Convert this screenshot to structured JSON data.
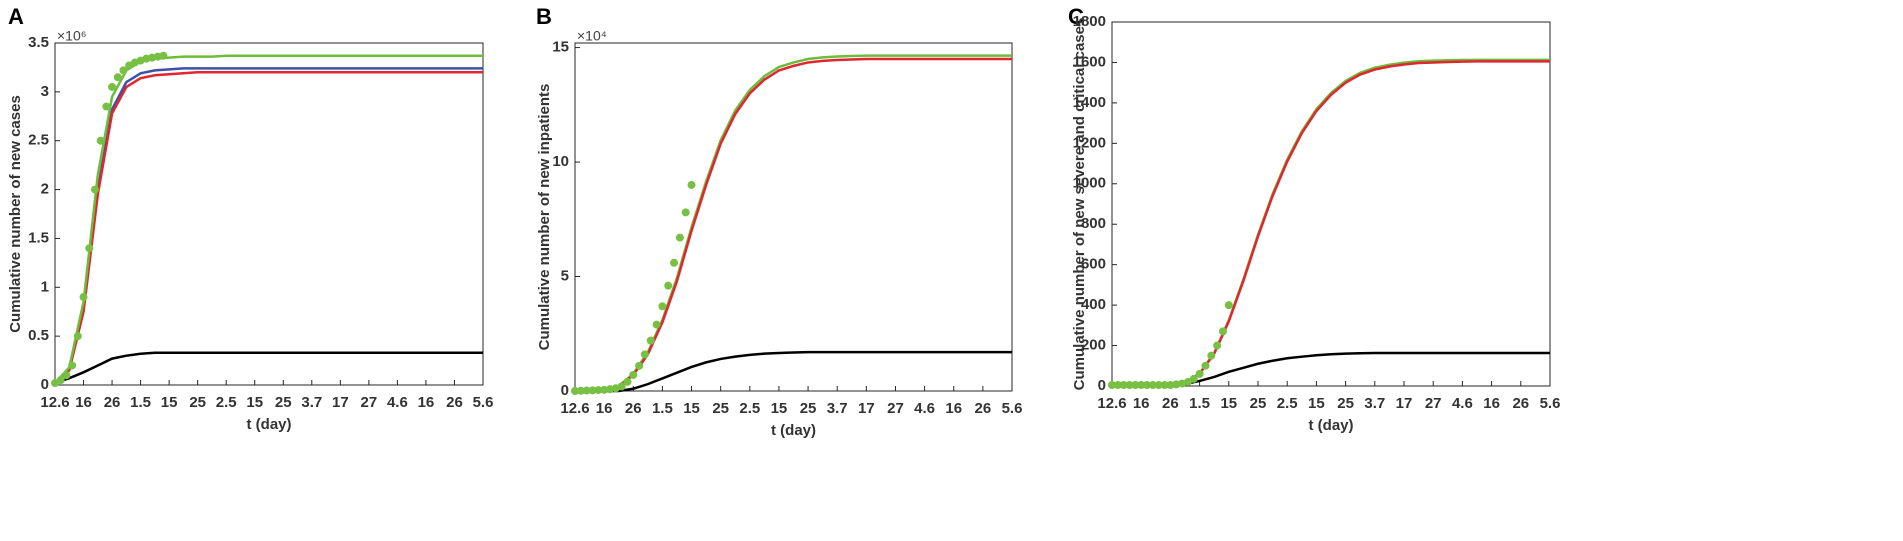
{
  "chart_data": [
    {
      "type": "line",
      "panel_label": "A",
      "ylabel": "Cumulative number of new cases",
      "xlabel": "t (day)",
      "y_multiplier": "×10⁶",
      "xlim": [
        0,
        150
      ],
      "xticks": [
        {
          "value": 0,
          "label": "12.6"
        },
        {
          "value": 10,
          "label": "16"
        },
        {
          "value": 20,
          "label": "26"
        },
        {
          "value": 30,
          "label": "1.5"
        },
        {
          "value": 40,
          "label": "15"
        },
        {
          "value": 50,
          "label": "25"
        },
        {
          "value": 60,
          "label": "2.5"
        },
        {
          "value": 70,
          "label": "15"
        },
        {
          "value": 80,
          "label": "25"
        },
        {
          "value": 90,
          "label": "3.7"
        },
        {
          "value": 100,
          "label": "17"
        },
        {
          "value": 110,
          "label": "27"
        },
        {
          "value": 120,
          "label": "4.6"
        },
        {
          "value": 130,
          "label": "16"
        },
        {
          "value": 140,
          "label": "26"
        },
        {
          "value": 150,
          "label": "5.6"
        }
      ],
      "ylim": [
        0,
        3.5
      ],
      "yticks": [
        0,
        0.5,
        1,
        1.5,
        2,
        2.5,
        3,
        3.5
      ],
      "series": [
        {
          "color": "#000000",
          "x": [
            0,
            5,
            10,
            15,
            20,
            25,
            30,
            35,
            40,
            45,
            50,
            55,
            60,
            65,
            70,
            75,
            80,
            85,
            90,
            95,
            100,
            105,
            110,
            115,
            120,
            125,
            130,
            135,
            140,
            145,
            150
          ],
          "values": [
            0.02,
            0.07,
            0.13,
            0.2,
            0.27,
            0.3,
            0.32,
            0.33,
            0.33,
            0.33,
            0.33,
            0.33,
            0.33,
            0.33,
            0.33,
            0.33,
            0.33,
            0.33,
            0.33,
            0.33,
            0.33,
            0.33,
            0.33,
            0.33,
            0.33,
            0.33,
            0.33,
            0.33,
            0.33,
            0.33,
            0.33
          ]
        },
        {
          "color": "#3a52a8",
          "x": [
            0,
            5,
            10,
            15,
            20,
            25,
            30,
            35,
            40,
            45,
            50,
            55,
            60,
            65,
            70,
            75,
            80,
            85,
            90,
            95,
            100,
            105,
            110,
            115,
            120,
            125,
            130,
            135,
            140,
            145,
            150
          ],
          "values": [
            0.02,
            0.16,
            0.78,
            2.0,
            2.82,
            3.1,
            3.19,
            3.22,
            3.23,
            3.24,
            3.24,
            3.24,
            3.24,
            3.24,
            3.24,
            3.24,
            3.24,
            3.24,
            3.24,
            3.24,
            3.24,
            3.24,
            3.24,
            3.24,
            3.24,
            3.24,
            3.24,
            3.24,
            3.24,
            3.24,
            3.24
          ]
        },
        {
          "color": "#e0262e",
          "x": [
            0,
            5,
            10,
            15,
            20,
            25,
            30,
            35,
            40,
            45,
            50,
            55,
            60,
            65,
            70,
            75,
            80,
            85,
            90,
            95,
            100,
            105,
            110,
            115,
            120,
            125,
            130,
            135,
            140,
            145,
            150
          ],
          "values": [
            0.02,
            0.15,
            0.75,
            1.95,
            2.78,
            3.05,
            3.14,
            3.17,
            3.18,
            3.19,
            3.2,
            3.2,
            3.2,
            3.2,
            3.2,
            3.2,
            3.2,
            3.2,
            3.2,
            3.2,
            3.2,
            3.2,
            3.2,
            3.2,
            3.2,
            3.2,
            3.2,
            3.2,
            3.2,
            3.2,
            3.2
          ]
        },
        {
          "color": "#6cbd3b",
          "x": [
            0,
            5,
            10,
            15,
            20,
            25,
            30,
            35,
            40,
            45,
            50,
            55,
            60,
            65,
            70,
            75,
            80,
            85,
            90,
            95,
            100,
            105,
            110,
            115,
            120,
            125,
            130,
            135,
            140,
            145,
            150
          ],
          "values": [
            0.02,
            0.18,
            0.85,
            2.15,
            2.95,
            3.22,
            3.31,
            3.34,
            3.35,
            3.36,
            3.36,
            3.36,
            3.37,
            3.37,
            3.37,
            3.37,
            3.37,
            3.37,
            3.37,
            3.37,
            3.37,
            3.37,
            3.37,
            3.37,
            3.37,
            3.37,
            3.37,
            3.37,
            3.37,
            3.37,
            3.37
          ]
        },
        {
          "color": "#77c043",
          "markers": true,
          "x": [
            0,
            2,
            4,
            6,
            8,
            10,
            12,
            14,
            16,
            18,
            20,
            22,
            24,
            26,
            28,
            30,
            32,
            34,
            36,
            38
          ],
          "values": [
            0.02,
            0.05,
            0.1,
            0.2,
            0.5,
            0.9,
            1.4,
            2.0,
            2.5,
            2.85,
            3.05,
            3.15,
            3.22,
            3.27,
            3.3,
            3.32,
            3.34,
            3.35,
            3.36,
            3.37
          ]
        }
      ]
    },
    {
      "type": "line",
      "panel_label": "B",
      "ylabel": "Cumulative number of new inpatients",
      "xlabel": "t (day)",
      "y_multiplier": "×10⁴",
      "xlim": [
        0,
        150
      ],
      "xticks": [
        {
          "value": 0,
          "label": "12.6"
        },
        {
          "value": 10,
          "label": "16"
        },
        {
          "value": 20,
          "label": "26"
        },
        {
          "value": 30,
          "label": "1.5"
        },
        {
          "value": 40,
          "label": "15"
        },
        {
          "value": 50,
          "label": "25"
        },
        {
          "value": 60,
          "label": "2.5"
        },
        {
          "value": 70,
          "label": "15"
        },
        {
          "value": 80,
          "label": "25"
        },
        {
          "value": 90,
          "label": "3.7"
        },
        {
          "value": 100,
          "label": "17"
        },
        {
          "value": 110,
          "label": "27"
        },
        {
          "value": 120,
          "label": "4.6"
        },
        {
          "value": 130,
          "label": "16"
        },
        {
          "value": 140,
          "label": "26"
        },
        {
          "value": 150,
          "label": "5.6"
        }
      ],
      "ylim": [
        0,
        15.2
      ],
      "yticks": [
        0,
        5,
        10,
        15
      ],
      "series": [
        {
          "color": "#000000",
          "x": [
            0,
            5,
            10,
            15,
            20,
            25,
            30,
            35,
            40,
            45,
            50,
            55,
            60,
            65,
            70,
            75,
            80,
            85,
            90,
            95,
            100,
            105,
            110,
            115,
            120,
            125,
            130,
            135,
            140,
            145,
            150
          ],
          "values": [
            0,
            0,
            0,
            0,
            0.1,
            0.3,
            0.55,
            0.8,
            1.05,
            1.25,
            1.4,
            1.5,
            1.58,
            1.63,
            1.66,
            1.68,
            1.7,
            1.7,
            1.7,
            1.7,
            1.7,
            1.7,
            1.7,
            1.7,
            1.7,
            1.7,
            1.7,
            1.7,
            1.7,
            1.7,
            1.7
          ]
        },
        {
          "color": "#6cbd3b",
          "x": [
            0,
            5,
            10,
            15,
            20,
            25,
            30,
            35,
            40,
            45,
            50,
            55,
            60,
            65,
            70,
            75,
            80,
            85,
            90,
            95,
            100,
            105,
            110,
            115,
            120,
            125,
            130,
            135,
            140,
            145,
            150
          ],
          "values": [
            0,
            0.02,
            0.06,
            0.22,
            0.75,
            1.7,
            3.1,
            4.95,
            7.15,
            9.15,
            10.95,
            12.25,
            13.15,
            13.75,
            14.15,
            14.35,
            14.5,
            14.57,
            14.61,
            14.63,
            14.65,
            14.65,
            14.65,
            14.65,
            14.65,
            14.65,
            14.65,
            14.65,
            14.65,
            14.65,
            14.65
          ]
        },
        {
          "color": "#e0262e",
          "x": [
            0,
            5,
            10,
            15,
            20,
            25,
            30,
            35,
            40,
            45,
            50,
            55,
            60,
            65,
            70,
            75,
            80,
            85,
            90,
            95,
            100,
            105,
            110,
            115,
            120,
            125,
            130,
            135,
            140,
            145,
            150
          ],
          "values": [
            0,
            0.02,
            0.05,
            0.2,
            0.7,
            1.6,
            3.0,
            4.8,
            7.0,
            9.0,
            10.8,
            12.1,
            13.0,
            13.6,
            14.0,
            14.2,
            14.35,
            14.42,
            14.46,
            14.48,
            14.5,
            14.5,
            14.5,
            14.5,
            14.5,
            14.5,
            14.5,
            14.5,
            14.5,
            14.5,
            14.5
          ]
        },
        {
          "color": "#77c043",
          "markers": true,
          "x": [
            0,
            2,
            4,
            6,
            8,
            10,
            12,
            14,
            16,
            18,
            20,
            22,
            24,
            26,
            28,
            30,
            32,
            34,
            36,
            38,
            40
          ],
          "values": [
            0,
            0.01,
            0.02,
            0.03,
            0.04,
            0.05,
            0.08,
            0.12,
            0.2,
            0.4,
            0.7,
            1.1,
            1.6,
            2.2,
            2.9,
            3.7,
            4.6,
            5.6,
            6.7,
            7.8,
            9.0
          ]
        }
      ]
    },
    {
      "type": "line",
      "panel_label": "C",
      "ylabel": "Cumulative number of new severe and critical cases",
      "xlabel": "t (day)",
      "xlim": [
        0,
        150
      ],
      "xticks": [
        {
          "value": 0,
          "label": "12.6"
        },
        {
          "value": 10,
          "label": "16"
        },
        {
          "value": 20,
          "label": "26"
        },
        {
          "value": 30,
          "label": "1.5"
        },
        {
          "value": 40,
          "label": "15"
        },
        {
          "value": 50,
          "label": "25"
        },
        {
          "value": 60,
          "label": "2.5"
        },
        {
          "value": 70,
          "label": "15"
        },
        {
          "value": 80,
          "label": "25"
        },
        {
          "value": 90,
          "label": "3.7"
        },
        {
          "value": 100,
          "label": "17"
        },
        {
          "value": 110,
          "label": "27"
        },
        {
          "value": 120,
          "label": "4.6"
        },
        {
          "value": 130,
          "label": "16"
        },
        {
          "value": 140,
          "label": "26"
        },
        {
          "value": 150,
          "label": "5.6"
        }
      ],
      "ylim": [
        0,
        1800
      ],
      "yticks": [
        0,
        200,
        400,
        600,
        800,
        1000,
        1200,
        1400,
        1600,
        1800
      ],
      "series": [
        {
          "color": "#000000",
          "x": [
            0,
            5,
            10,
            15,
            20,
            25,
            30,
            35,
            40,
            45,
            50,
            55,
            60,
            65,
            70,
            75,
            80,
            85,
            90,
            95,
            100,
            105,
            110,
            115,
            120,
            125,
            130,
            135,
            140,
            145,
            150
          ],
          "values": [
            5,
            5,
            5,
            5,
            5,
            10,
            25,
            45,
            70,
            90,
            110,
            125,
            137,
            145,
            152,
            157,
            160,
            162,
            163,
            163,
            163,
            163,
            163,
            163,
            163,
            163,
            163,
            163,
            163,
            163,
            163
          ]
        },
        {
          "color": "#6cbd3b",
          "x": [
            0,
            5,
            10,
            15,
            20,
            25,
            30,
            35,
            40,
            45,
            50,
            55,
            60,
            65,
            70,
            75,
            80,
            85,
            90,
            95,
            100,
            105,
            110,
            115,
            120,
            125,
            130,
            135,
            140,
            145,
            150
          ],
          "values": [
            5,
            5,
            5,
            5,
            5,
            16,
            62,
            163,
            325,
            527,
            748,
            949,
            1119,
            1259,
            1369,
            1449,
            1509,
            1549,
            1574,
            1589,
            1599,
            1606,
            1609,
            1611,
            1612,
            1613,
            1613,
            1613,
            1613,
            1613,
            1613
          ]
        },
        {
          "color": "#e0262e",
          "x": [
            0,
            5,
            10,
            15,
            20,
            25,
            30,
            35,
            40,
            45,
            50,
            55,
            60,
            65,
            70,
            75,
            80,
            85,
            90,
            95,
            100,
            105,
            110,
            115,
            120,
            125,
            130,
            135,
            140,
            145,
            150
          ],
          "values": [
            5,
            5,
            5,
            5,
            5,
            15,
            60,
            160,
            320,
            520,
            740,
            940,
            1110,
            1250,
            1360,
            1440,
            1500,
            1540,
            1565,
            1580,
            1590,
            1597,
            1600,
            1602,
            1604,
            1605,
            1605,
            1605,
            1605,
            1605,
            1605
          ]
        },
        {
          "color": "#77c043",
          "markers": true,
          "x": [
            0,
            2,
            4,
            6,
            8,
            10,
            12,
            14,
            16,
            18,
            20,
            22,
            24,
            26,
            28,
            30,
            32,
            34,
            36,
            38,
            40
          ],
          "values": [
            5,
            5,
            5,
            5,
            5,
            5,
            5,
            5,
            5,
            5,
            5,
            8,
            12,
            20,
            35,
            60,
            100,
            150,
            200,
            270,
            400
          ]
        }
      ]
    }
  ]
}
